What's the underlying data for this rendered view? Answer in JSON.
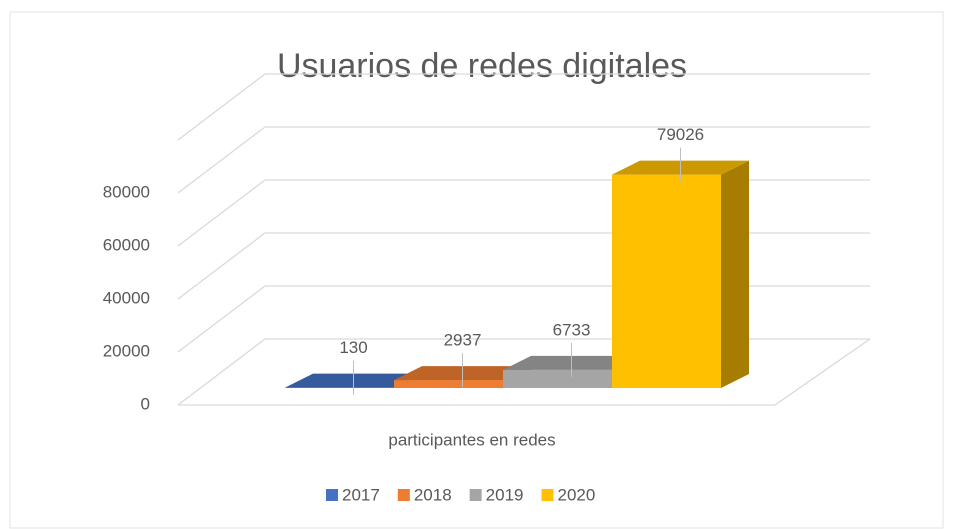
{
  "chart_data": {
    "type": "bar3d",
    "title": "Usuarios de redes digitales",
    "categories": [
      "participantes en redes"
    ],
    "series": [
      {
        "name": "2017",
        "color": "#4472c4",
        "values": [
          130
        ]
      },
      {
        "name": "2018",
        "color": "#ed7d31",
        "values": [
          2937
        ]
      },
      {
        "name": "2019",
        "color": "#a5a5a5",
        "values": [
          6733
        ]
      },
      {
        "name": "2020",
        "color": "#ffc000",
        "values": [
          79026
        ]
      }
    ],
    "ylim": [
      0,
      100000
    ],
    "yticks": [
      0,
      20000,
      40000,
      60000,
      80000
    ],
    "grid": true,
    "legend": "bottom"
  }
}
